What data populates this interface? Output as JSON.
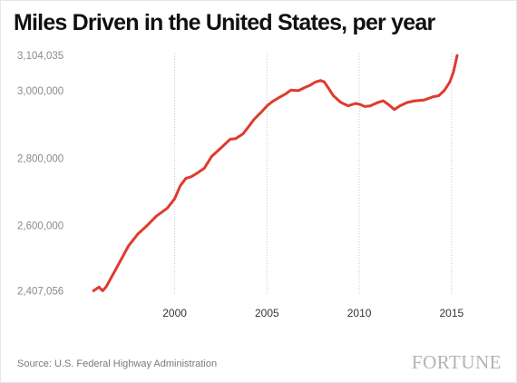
{
  "chart_data": {
    "type": "line",
    "title": "Miles Driven in the United States, per year",
    "xlabel": "",
    "ylabel": "",
    "xlim": [
      1995.4,
      2015.4
    ],
    "ylim": [
      2400000,
      3110000
    ],
    "y_ticks": [
      3104035,
      3000000,
      2800000,
      2600000,
      2407056
    ],
    "y_tick_labels": [
      "3,104,035",
      "3,000,000",
      "2,800,000",
      "2,600,000",
      "2,407,056"
    ],
    "x_ticks": [
      2000,
      2005,
      2010,
      2015
    ],
    "x_tick_labels": [
      "2000",
      "2005",
      "2010",
      "2015"
    ],
    "grid": "vertical dotted lines at x ticks",
    "legend": "none",
    "series": [
      {
        "color": "#e03a30",
        "x": [
          1995.6,
          1995.9,
          1996.1,
          1996.3,
          1996.5,
          1997.0,
          1997.5,
          1998.0,
          1998.5,
          1999.0,
          1999.3,
          1999.6,
          2000.0,
          2000.3,
          2000.6,
          2000.9,
          2001.2,
          2001.6,
          2002.0,
          2002.5,
          2003.0,
          2003.3,
          2003.7,
          2004.0,
          2004.3,
          2004.7,
          2005.0,
          2005.3,
          2005.6,
          2006.0,
          2006.3,
          2006.7,
          2007.0,
          2007.3,
          2007.6,
          2007.9,
          2008.1,
          2008.3,
          2008.6,
          2009.0,
          2009.4,
          2009.8,
          2010.0,
          2010.3,
          2010.6,
          2011.0,
          2011.3,
          2011.6,
          2011.9,
          2012.2,
          2012.6,
          2013.0,
          2013.5,
          2014.0,
          2014.3,
          2014.6,
          2014.9,
          2015.1,
          2015.3
        ],
        "y": [
          2407000,
          2418000,
          2407056,
          2420000,
          2440000,
          2490000,
          2540000,
          2575000,
          2600000,
          2628000,
          2640000,
          2652000,
          2680000,
          2718000,
          2740000,
          2745000,
          2755000,
          2770000,
          2805000,
          2830000,
          2856000,
          2858000,
          2872000,
          2893000,
          2915000,
          2937000,
          2955000,
          2968000,
          2978000,
          2990000,
          3002000,
          3000000,
          3008000,
          3015000,
          3025000,
          3030000,
          3026000,
          3010000,
          2985000,
          2965000,
          2955000,
          2962000,
          2960000,
          2953000,
          2955000,
          2965000,
          2970000,
          2958000,
          2944000,
          2955000,
          2965000,
          2970000,
          2972000,
          2982000,
          2985000,
          3000000,
          3025000,
          3055000,
          3104035
        ]
      }
    ]
  },
  "footer": {
    "source": "Source: U.S. Federal Highway Administration",
    "brand": "FORTUNE"
  }
}
